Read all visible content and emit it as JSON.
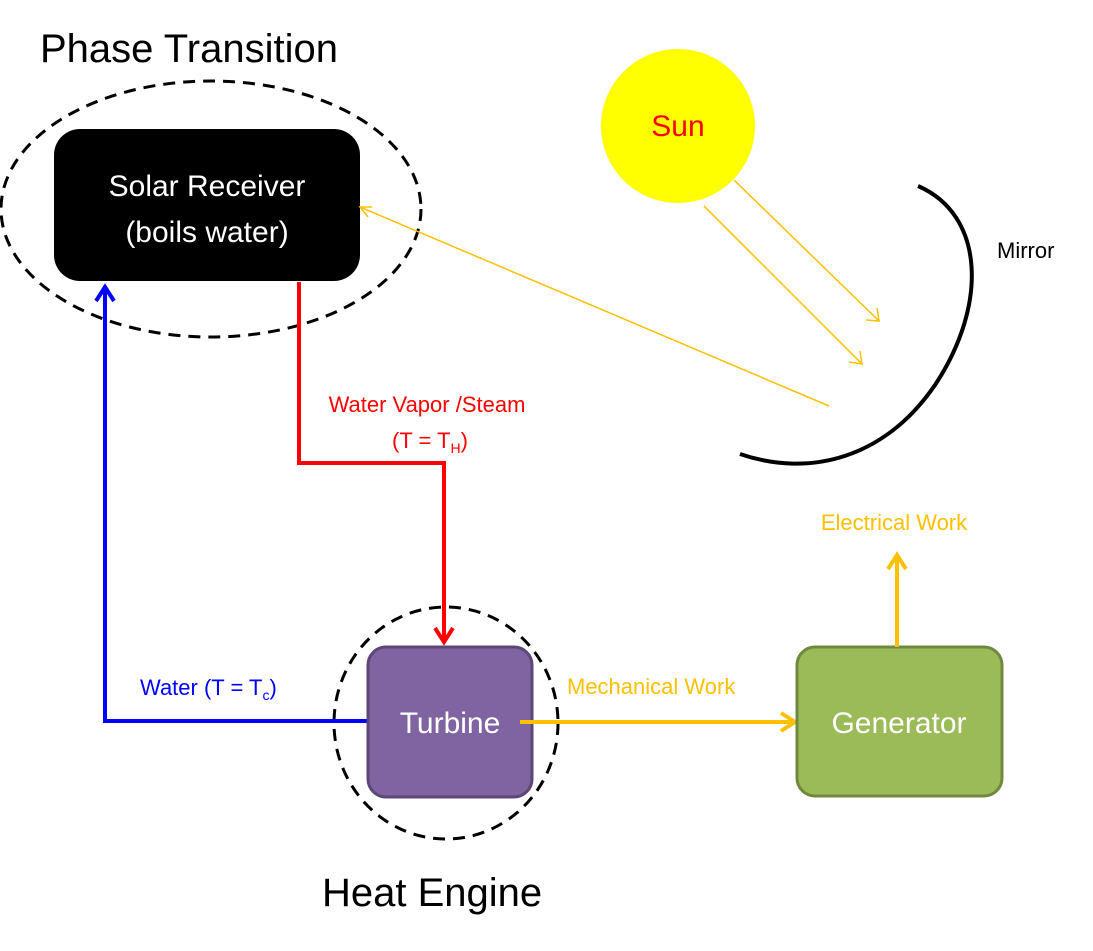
{
  "titles": {
    "phase_transition": "Phase Transition",
    "heat_engine": "Heat Engine"
  },
  "nodes": {
    "solar_receiver": {
      "line1": "Solar Receiver",
      "line2": "(boils water)"
    },
    "sun": "Sun",
    "mirror": "Mirror",
    "turbine": "Turbine",
    "generator": "Generator"
  },
  "edges": {
    "steam": {
      "line1": "Water Vapor /Steam",
      "temp_prefix": "(T = T",
      "temp_sub": "H",
      "temp_suffix": ")"
    },
    "water": {
      "prefix": "Water (T = T",
      "sub": "c",
      "suffix": ")"
    },
    "mechanical": "Mechanical Work",
    "electrical": "Electrical Work"
  },
  "colors": {
    "hot": "#ff0000",
    "cold": "#0000ff",
    "energy": "#ffc000",
    "sun_fill": "#ffff00",
    "turbine_fill": "#8064a2",
    "generator_fill": "#9bbb59",
    "receiver_fill": "#000000"
  }
}
